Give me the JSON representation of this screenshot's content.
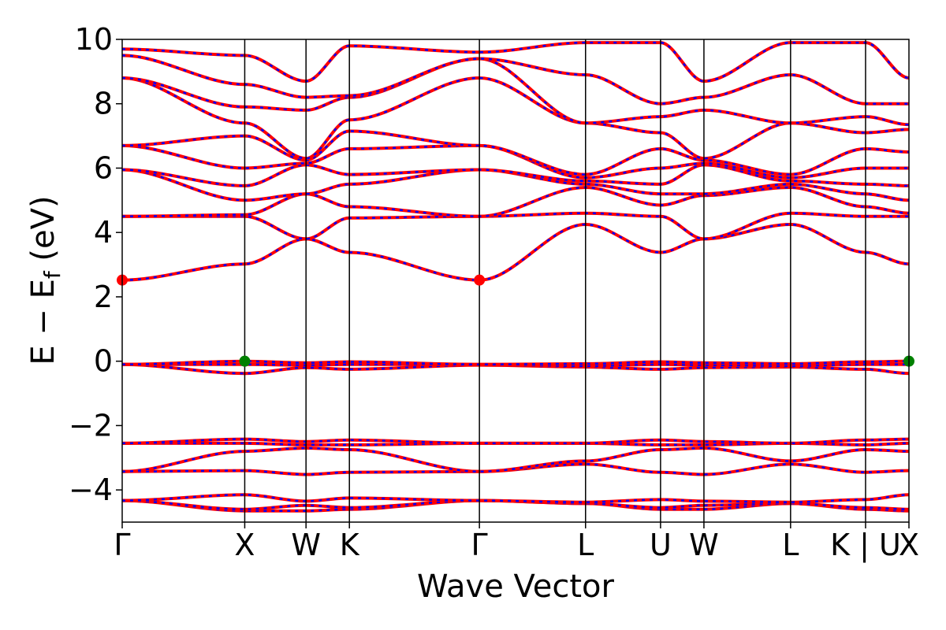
{
  "chart_data": {
    "type": "line",
    "title": "",
    "xlabel": "Wave Vector",
    "ylabel_parts": {
      "main": "E − E",
      "sub": "f",
      "unit": " (eV)"
    },
    "ylim": [
      -5,
      10
    ],
    "y_ticks": [
      -4,
      -2,
      0,
      2,
      4,
      6,
      8,
      10
    ],
    "y_tick_labels": [
      "−4",
      "−2",
      "0",
      "2",
      "4",
      "6",
      "8",
      "10"
    ],
    "k_path": [
      {
        "label": "Γ",
        "k": 0.0
      },
      {
        "label": "X",
        "k": 1.0
      },
      {
        "label": "W",
        "k": 1.5
      },
      {
        "label": "K",
        "k": 1.854
      },
      {
        "label": "Γ",
        "k": 2.915
      },
      {
        "label": "L",
        "k": 3.781
      },
      {
        "label": "U",
        "k": 4.393
      },
      {
        "label": "W",
        "k": 4.747
      },
      {
        "label": "L",
        "k": 5.454
      },
      {
        "label": "K | U",
        "k": 6.066
      },
      {
        "label": "X",
        "k": 6.42
      }
    ],
    "line_colors": {
      "solid": "#ff0000",
      "dashed": "#0000ff"
    },
    "extrema_markers": [
      {
        "k": 0.0,
        "E": 2.52,
        "color": "#ff0000",
        "kind": "CBM"
      },
      {
        "k": 2.915,
        "E": 2.52,
        "color": "#ff0000",
        "kind": "CBM"
      },
      {
        "k": 1.0,
        "E": 0.0,
        "color": "#008000",
        "kind": "VBM"
      },
      {
        "k": 6.42,
        "E": 0.0,
        "color": "#008000",
        "kind": "VBM"
      }
    ],
    "bands": [
      [
        -4.33,
        -4.65,
        -4.65,
        -4.6,
        -4.33,
        -4.42,
        -4.6,
        -4.6,
        -4.42,
        -4.6,
        -4.65
      ],
      [
        -4.33,
        -4.6,
        -4.48,
        -4.55,
        -4.33,
        -4.42,
        -4.55,
        -4.48,
        -4.42,
        -4.55,
        -4.6
      ],
      [
        -4.33,
        -4.15,
        -4.35,
        -4.25,
        -4.33,
        -4.38,
        -4.3,
        -4.35,
        -4.38,
        -4.3,
        -4.15
      ],
      [
        -3.43,
        -3.4,
        -3.52,
        -3.45,
        -3.43,
        -3.2,
        -3.45,
        -3.52,
        -3.2,
        -3.45,
        -3.4
      ],
      [
        -3.43,
        -2.8,
        -2.7,
        -2.75,
        -3.43,
        -3.1,
        -2.75,
        -2.7,
        -3.1,
        -2.75,
        -2.8
      ],
      [
        -2.55,
        -2.55,
        -2.6,
        -2.6,
        -2.55,
        -2.55,
        -2.6,
        -2.6,
        -2.55,
        -2.6,
        -2.55
      ],
      [
        -2.55,
        -2.42,
        -2.5,
        -2.45,
        -2.55,
        -2.55,
        -2.45,
        -2.5,
        -2.55,
        -2.45,
        -2.42
      ],
      [
        -0.1,
        -0.38,
        -0.2,
        -0.25,
        -0.12,
        -0.18,
        -0.25,
        -0.2,
        -0.18,
        -0.25,
        -0.38
      ],
      [
        -0.1,
        -0.1,
        -0.12,
        -0.1,
        -0.1,
        -0.15,
        -0.1,
        -0.12,
        -0.15,
        -0.1,
        -0.1
      ],
      [
        -0.1,
        0.0,
        -0.05,
        -0.02,
        -0.1,
        -0.08,
        -0.02,
        -0.05,
        -0.08,
        -0.02,
        0.0
      ],
      [
        2.52,
        3.02,
        3.8,
        3.38,
        2.52,
        4.25,
        3.38,
        3.8,
        4.25,
        3.38,
        3.02
      ],
      [
        4.5,
        4.5,
        3.8,
        4.45,
        4.5,
        4.6,
        4.5,
        3.8,
        4.6,
        4.5,
        4.5
      ],
      [
        4.5,
        4.55,
        5.2,
        4.8,
        4.5,
        5.4,
        4.85,
        5.15,
        5.4,
        4.8,
        4.6
      ],
      [
        5.95,
        5.0,
        5.2,
        5.5,
        5.95,
        5.5,
        5.2,
        5.2,
        5.5,
        5.2,
        5.0
      ],
      [
        5.95,
        5.45,
        6.1,
        5.8,
        5.95,
        5.6,
        5.5,
        6.1,
        5.6,
        5.5,
        5.45
      ],
      [
        6.7,
        6.0,
        6.15,
        6.6,
        6.7,
        5.7,
        6.0,
        6.15,
        5.7,
        6.0,
        6.0
      ],
      [
        6.7,
        7.0,
        6.25,
        7.15,
        6.7,
        5.8,
        6.6,
        6.25,
        5.8,
        6.6,
        6.5
      ],
      [
        8.8,
        7.4,
        6.3,
        7.5,
        8.8,
        7.4,
        7.1,
        6.3,
        7.4,
        7.1,
        7.2
      ],
      [
        8.8,
        7.9,
        7.8,
        8.2,
        9.4,
        7.4,
        7.6,
        7.8,
        7.4,
        7.6,
        7.35
      ],
      [
        9.5,
        8.6,
        8.2,
        8.25,
        9.4,
        8.9,
        8.0,
        8.2,
        8.9,
        8.0,
        8.0
      ],
      [
        9.7,
        9.5,
        8.7,
        9.8,
        9.6,
        9.9,
        9.9,
        8.7,
        9.9,
        9.9,
        8.8
      ]
    ]
  }
}
